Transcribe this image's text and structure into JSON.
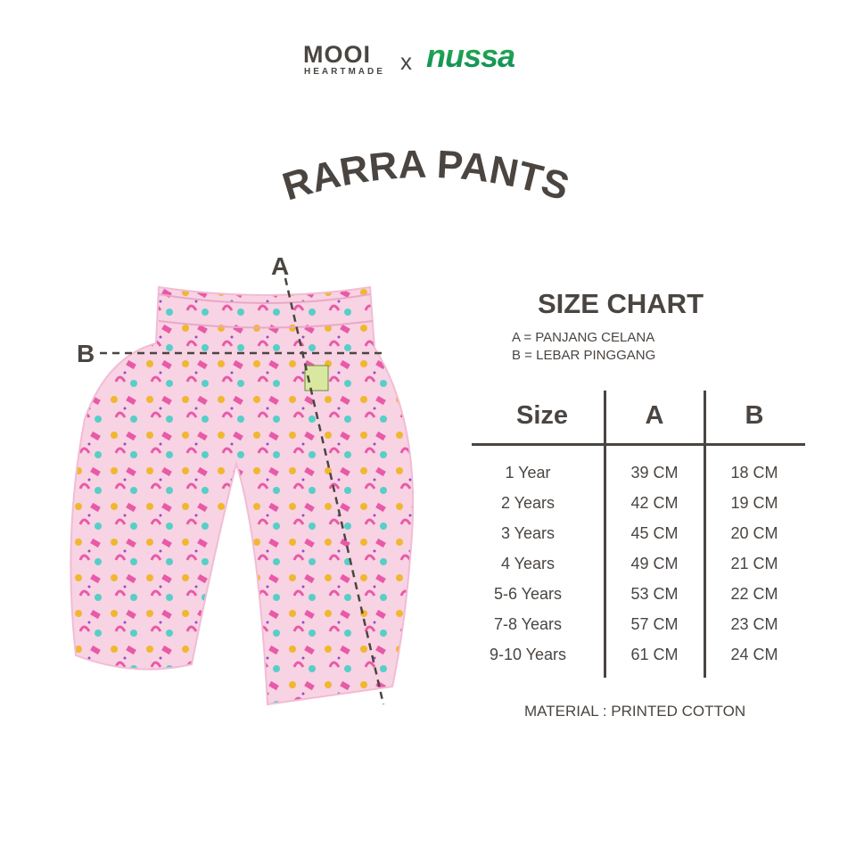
{
  "brand": {
    "mooi": "MOOI",
    "heartmade": "HEARTMADE",
    "x": "x",
    "nussa": "nussa"
  },
  "product_title": "RARRA PANTS",
  "size_chart": {
    "title": "SIZE CHART",
    "legend": [
      "A = PANJANG CELANA",
      "B = LEBAR PINGGANG"
    ],
    "columns": [
      "Size",
      "A",
      "B"
    ],
    "rows": [
      [
        "1 Year",
        "39 CM",
        "18 CM"
      ],
      [
        "2 Years",
        "42 CM",
        "19 CM"
      ],
      [
        "3 Years",
        "45 CM",
        "20 CM"
      ],
      [
        "4 Years",
        "49 CM",
        "21 CM"
      ],
      [
        "5-6 Years",
        "53 CM",
        "22 CM"
      ],
      [
        "7-8 Years",
        "57 CM",
        "23 CM"
      ],
      [
        "9-10 Years",
        "61 CM",
        "24 CM"
      ]
    ],
    "material": "MATERIAL : PRINTED COTTON"
  },
  "measure_labels": {
    "a": "A",
    "b": "B"
  },
  "colors": {
    "text": "#4a4541",
    "brand_green": "#179a4c",
    "pants_pink": "#f7cfe0"
  }
}
